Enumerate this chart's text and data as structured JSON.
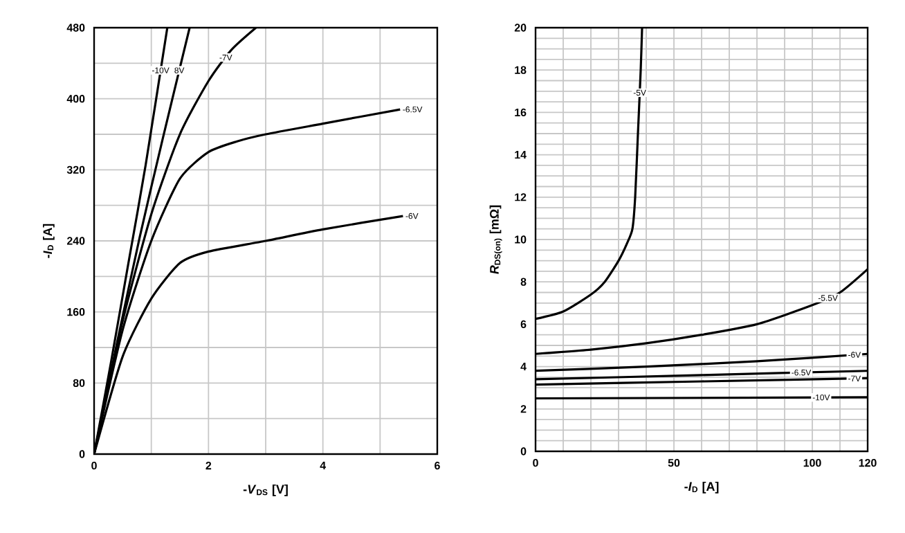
{
  "chart_data": [
    {
      "type": "line",
      "xlabel": "-*V*$_{DS}$ [V]",
      "ylabel": "-*I*$_{D}$ [A]",
      "xlim": [
        0,
        6
      ],
      "ylim": [
        0,
        480
      ],
      "xticks": [
        0,
        {
          "value": 1,
          "label": null
        },
        2,
        {
          "value": 3,
          "label": null
        },
        4,
        {
          "value": 5,
          "label": null
        },
        6
      ],
      "yticks": [
        0,
        {
          "value": 40,
          "label": null
        },
        80,
        {
          "value": 120,
          "label": null
        },
        160,
        {
          "value": 200,
          "label": null
        },
        240,
        {
          "value": 280,
          "label": null
        },
        320,
        {
          "value": 360,
          "label": null
        },
        400,
        {
          "value": 440,
          "label": null
        },
        480
      ],
      "grid": true,
      "line_style": "solid",
      "marker": "none",
      "series": [
        {
          "name": "-10V",
          "color": "#000000",
          "x": [
            0,
            0.3,
            0.6,
            0.9,
            1.28
          ],
          "values": [
            0,
            105,
            215,
            325,
            480
          ]
        },
        {
          "name": "8V",
          "color": "#000000",
          "x": [
            0,
            0.4,
            0.8,
            1.2,
            1.67
          ],
          "values": [
            0,
            125,
            245,
            355,
            480
          ]
        },
        {
          "name": "-7V",
          "color": "#000000",
          "x": [
            0,
            0.5,
            1,
            1.5,
            2,
            2.4,
            2.83
          ],
          "values": [
            0,
            150,
            270,
            360,
            420,
            455,
            480
          ]
        },
        {
          "name": "-6.5V",
          "color": "#000000",
          "x": [
            0,
            0.5,
            1,
            1.5,
            2,
            2.5,
            3,
            4,
            5.35
          ],
          "values": [
            0,
            140,
            240,
            310,
            340,
            352,
            360,
            372,
            388
          ]
        },
        {
          "name": "-6V",
          "color": "#000000",
          "x": [
            0,
            0.5,
            1,
            1.5,
            2,
            3,
            4,
            5.4
          ],
          "values": [
            0,
            110,
            175,
            215,
            228,
            240,
            253,
            268
          ]
        }
      ]
    },
    {
      "type": "line",
      "xlabel": "-*I*$_{D}$ [A]",
      "ylabel": "*R*$_{DS(on)}$ [mΩ]",
      "xlim": [
        0,
        120
      ],
      "ylim": [
        0,
        20
      ],
      "xticks": [
        0,
        {
          "value": 10,
          "label": null
        },
        {
          "value": 20,
          "label": null
        },
        {
          "value": 30,
          "label": null
        },
        {
          "value": 40,
          "label": null
        },
        50,
        {
          "value": 60,
          "label": null
        },
        {
          "value": 70,
          "label": null
        },
        {
          "value": 80,
          "label": null
        },
        {
          "value": 90,
          "label": null
        },
        100,
        {
          "value": 110,
          "label": null
        },
        120
      ],
      "yticks": [
        0,
        {
          "value": 0.5,
          "label": null
        },
        {
          "value": 1,
          "label": null
        },
        {
          "value": 1.5,
          "label": null
        },
        2,
        {
          "value": 2.5,
          "label": null
        },
        {
          "value": 3,
          "label": null
        },
        {
          "value": 3.5,
          "label": null
        },
        4,
        {
          "value": 4.5,
          "label": null
        },
        {
          "value": 5,
          "label": null
        },
        {
          "value": 5.5,
          "label": null
        },
        6,
        {
          "value": 6.5,
          "label": null
        },
        {
          "value": 7,
          "label": null
        },
        {
          "value": 7.5,
          "label": null
        },
        8,
        {
          "value": 8.5,
          "label": null
        },
        {
          "value": 9,
          "label": null
        },
        {
          "value": 9.5,
          "label": null
        },
        10,
        {
          "value": 10.5,
          "label": null
        },
        {
          "value": 11,
          "label": null
        },
        {
          "value": 11.5,
          "label": null
        },
        12,
        {
          "value": 12.5,
          "label": null
        },
        {
          "value": 13,
          "label": null
        },
        {
          "value": 13.5,
          "label": null
        },
        14,
        {
          "value": 14.5,
          "label": null
        },
        {
          "value": 15,
          "label": null
        },
        {
          "value": 15.5,
          "label": null
        },
        16,
        {
          "value": 16.5,
          "label": null
        },
        {
          "value": 17,
          "label": null
        },
        {
          "value": 17.5,
          "label": null
        },
        18,
        {
          "value": 18.5,
          "label": null
        },
        {
          "value": 19,
          "label": null
        },
        {
          "value": 19.5,
          "label": null
        },
        20
      ],
      "grid": true,
      "line_style": "solid",
      "marker": "none",
      "series": [
        {
          "name": "-5V",
          "color": "#000000",
          "x": [
            0,
            10,
            20,
            25,
            30,
            33,
            35,
            36,
            37,
            38,
            38.5
          ],
          "values": [
            6.25,
            6.6,
            7.4,
            8.0,
            9.0,
            9.8,
            10.5,
            12,
            15,
            18,
            20
          ]
        },
        {
          "name": "-5.5V",
          "color": "#000000",
          "x": [
            0,
            20,
            40,
            60,
            80,
            100,
            110,
            120
          ],
          "values": [
            4.6,
            4.8,
            5.1,
            5.5,
            6.0,
            6.9,
            7.5,
            8.6
          ]
        },
        {
          "name": "-6V",
          "color": "#000000",
          "x": [
            0,
            40,
            80,
            120
          ],
          "values": [
            3.8,
            4.0,
            4.25,
            4.6
          ]
        },
        {
          "name": "-6.5V",
          "color": "#000000",
          "x": [
            0,
            60,
            120
          ],
          "values": [
            3.4,
            3.6,
            3.8
          ]
        },
        {
          "name": "-7V",
          "color": "#000000",
          "x": [
            0,
            60,
            120
          ],
          "values": [
            3.15,
            3.3,
            3.45
          ]
        },
        {
          "name": "-10V",
          "color": "#000000",
          "x": [
            0,
            120
          ],
          "values": [
            2.5,
            2.55
          ]
        }
      ]
    }
  ]
}
